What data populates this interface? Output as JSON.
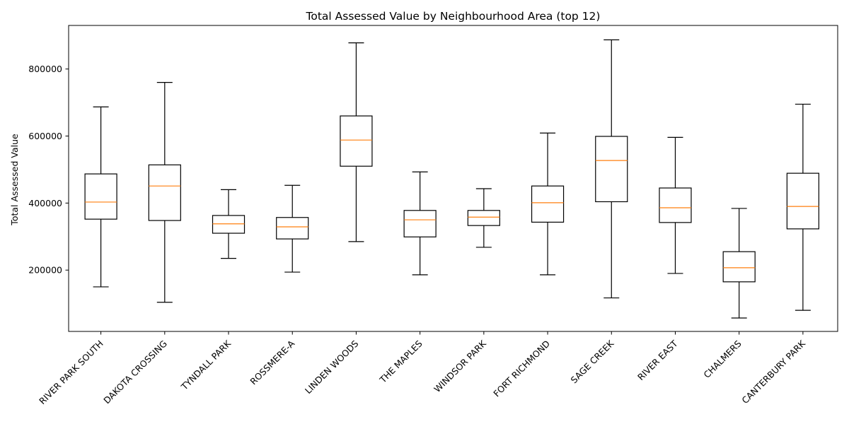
{
  "chart_data": {
    "type": "box",
    "title": "Total Assessed Value by Neighbourhood Area (top 12)",
    "xlabel": "",
    "ylabel": "Total Assessed Value",
    "ylim": [
      17000,
      930000
    ],
    "yticks": [
      200000,
      400000,
      600000,
      800000
    ],
    "ytick_labels": [
      "200000",
      "400000",
      "600000",
      "800000"
    ],
    "grid": false,
    "colors": {
      "box": "#000000",
      "median": "#ff7f0e"
    },
    "categories": [
      "RIVER PARK SOUTH",
      "DAKOTA CROSSING",
      "TYNDALL PARK",
      "ROSSMERE-A",
      "LINDEN WOODS",
      "THE MAPLES",
      "WINDSOR PARK",
      "FORT RICHMOND",
      "SAGE CREEK",
      "RIVER EAST",
      "CHALMERS",
      "CANTERBURY PARK"
    ],
    "boxes": [
      {
        "whisker_low": 150000,
        "q1": 352000,
        "median": 403000,
        "q3": 487000,
        "whisker_high": 687000
      },
      {
        "whisker_low": 104000,
        "q1": 348000,
        "median": 451000,
        "q3": 514000,
        "whisker_high": 760000
      },
      {
        "whisker_low": 235000,
        "q1": 310000,
        "median": 338000,
        "q3": 363000,
        "whisker_high": 440000
      },
      {
        "whisker_low": 194000,
        "q1": 293000,
        "median": 329000,
        "q3": 357000,
        "whisker_high": 453000
      },
      {
        "whisker_low": 285000,
        "q1": 510000,
        "median": 588000,
        "q3": 660000,
        "whisker_high": 878000
      },
      {
        "whisker_low": 186000,
        "q1": 299000,
        "median": 350000,
        "q3": 378000,
        "whisker_high": 493000
      },
      {
        "whisker_low": 268000,
        "q1": 333000,
        "median": 358000,
        "q3": 378000,
        "whisker_high": 443000
      },
      {
        "whisker_low": 186000,
        "q1": 343000,
        "median": 401000,
        "q3": 451000,
        "whisker_high": 609000
      },
      {
        "whisker_low": 117000,
        "q1": 404000,
        "median": 527000,
        "q3": 599000,
        "whisker_high": 887000
      },
      {
        "whisker_low": 190000,
        "q1": 342000,
        "median": 386000,
        "q3": 445000,
        "whisker_high": 596000
      },
      {
        "whisker_low": 57000,
        "q1": 165000,
        "median": 207000,
        "q3": 255000,
        "whisker_high": 384000
      },
      {
        "whisker_low": 80000,
        "q1": 323000,
        "median": 390000,
        "q3": 489000,
        "whisker_high": 695000
      }
    ]
  }
}
